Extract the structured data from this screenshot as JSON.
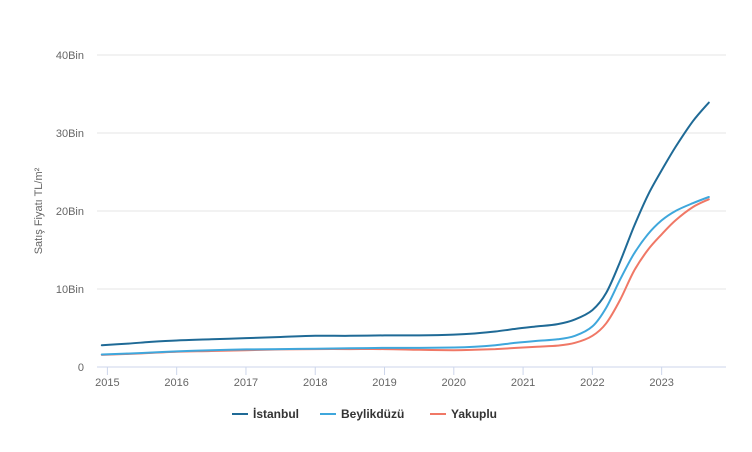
{
  "chart_data": {
    "type": "line",
    "ylabel": "Satış Fiyatı TL/m²",
    "xlabel": "",
    "ylim": [
      0,
      40000
    ],
    "xlim": [
      2014.85,
      2023.9
    ],
    "y_ticks": [
      0,
      10000,
      20000,
      30000,
      40000
    ],
    "y_tick_labels": [
      "0",
      "10Bin",
      "20Bin",
      "30Bin",
      "40Bin"
    ],
    "x_ticks": [
      2015,
      2016,
      2017,
      2018,
      2019,
      2020,
      2021,
      2022,
      2023
    ],
    "x_tick_labels": [
      "2015",
      "2016",
      "2017",
      "2018",
      "2019",
      "2020",
      "2021",
      "2022",
      "2023"
    ],
    "grid": "horizontal",
    "legend_position": "bottom-center",
    "series": [
      {
        "name": "İstanbul",
        "color": "#1f6a96",
        "points": [
          [
            2014.92,
            2800
          ],
          [
            2015.3,
            3000
          ],
          [
            2015.6,
            3200
          ],
          [
            2016.0,
            3400
          ],
          [
            2016.5,
            3550
          ],
          [
            2017.0,
            3700
          ],
          [
            2017.5,
            3850
          ],
          [
            2018.0,
            4000
          ],
          [
            2018.5,
            4000
          ],
          [
            2019.0,
            4050
          ],
          [
            2019.5,
            4050
          ],
          [
            2020.0,
            4150
          ],
          [
            2020.3,
            4300
          ],
          [
            2020.6,
            4550
          ],
          [
            2020.9,
            4900
          ],
          [
            2021.2,
            5200
          ],
          [
            2021.5,
            5500
          ],
          [
            2021.75,
            6100
          ],
          [
            2022.0,
            7300
          ],
          [
            2022.2,
            9500
          ],
          [
            2022.4,
            13500
          ],
          [
            2022.6,
            18000
          ],
          [
            2022.8,
            22000
          ],
          [
            2023.0,
            25200
          ],
          [
            2023.2,
            28200
          ],
          [
            2023.45,
            31500
          ],
          [
            2023.68,
            33900
          ]
        ]
      },
      {
        "name": "Beylikdüzü",
        "color": "#3fa7dc",
        "points": [
          [
            2014.92,
            1600
          ],
          [
            2015.5,
            1800
          ],
          [
            2016.0,
            2000
          ],
          [
            2016.5,
            2150
          ],
          [
            2017.0,
            2250
          ],
          [
            2017.5,
            2300
          ],
          [
            2018.0,
            2350
          ],
          [
            2018.5,
            2400
          ],
          [
            2019.0,
            2450
          ],
          [
            2019.5,
            2450
          ],
          [
            2020.0,
            2500
          ],
          [
            2020.3,
            2600
          ],
          [
            2020.6,
            2800
          ],
          [
            2020.9,
            3100
          ],
          [
            2021.2,
            3350
          ],
          [
            2021.5,
            3550
          ],
          [
            2021.75,
            4000
          ],
          [
            2022.0,
            5200
          ],
          [
            2022.2,
            7600
          ],
          [
            2022.4,
            11200
          ],
          [
            2022.6,
            14500
          ],
          [
            2022.8,
            17000
          ],
          [
            2023.0,
            18800
          ],
          [
            2023.2,
            20000
          ],
          [
            2023.45,
            21000
          ],
          [
            2023.68,
            21800
          ]
        ]
      },
      {
        "name": "Yakuplu",
        "color": "#f07866",
        "points": [
          [
            2014.92,
            1550
          ],
          [
            2015.5,
            1750
          ],
          [
            2016.0,
            1950
          ],
          [
            2016.5,
            2050
          ],
          [
            2017.0,
            2150
          ],
          [
            2017.5,
            2250
          ],
          [
            2018.0,
            2300
          ],
          [
            2018.5,
            2300
          ],
          [
            2019.0,
            2300
          ],
          [
            2019.5,
            2200
          ],
          [
            2020.0,
            2150
          ],
          [
            2020.3,
            2200
          ],
          [
            2020.6,
            2300
          ],
          [
            2020.9,
            2450
          ],
          [
            2021.2,
            2600
          ],
          [
            2021.5,
            2750
          ],
          [
            2021.75,
            3100
          ],
          [
            2022.0,
            4000
          ],
          [
            2022.2,
            5600
          ],
          [
            2022.4,
            8600
          ],
          [
            2022.6,
            12300
          ],
          [
            2022.8,
            15000
          ],
          [
            2023.0,
            17000
          ],
          [
            2023.2,
            18800
          ],
          [
            2023.45,
            20500
          ],
          [
            2023.68,
            21500
          ]
        ]
      }
    ]
  }
}
